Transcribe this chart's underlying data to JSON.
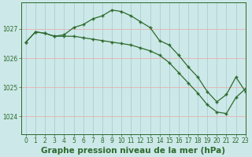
{
  "title": "Graphe pression niveau de la mer (hPa)",
  "background_color": "#cce8e8",
  "grid_color": "#aacfcf",
  "line_color": "#2d6a2d",
  "xlim": [
    -0.5,
    23
  ],
  "ylim": [
    1023.4,
    1027.9
  ],
  "yticks": [
    1024,
    1025,
    1026,
    1027
  ],
  "xticks": [
    0,
    1,
    2,
    3,
    4,
    5,
    6,
    7,
    8,
    9,
    10,
    11,
    12,
    13,
    14,
    15,
    16,
    17,
    18,
    19,
    20,
    21,
    22,
    23
  ],
  "series1_x": [
    0,
    1,
    2,
    3,
    4,
    5,
    6,
    7,
    8,
    9,
    10,
    11,
    12,
    13,
    14,
    15,
    16,
    17,
    18,
    19,
    20,
    21,
    22,
    23
  ],
  "series1_y": [
    1026.55,
    1026.9,
    1026.85,
    1026.75,
    1026.8,
    1027.05,
    1027.15,
    1027.35,
    1027.45,
    1027.65,
    1027.6,
    1027.45,
    1027.25,
    1027.05,
    1026.6,
    1026.45,
    1026.1,
    1025.7,
    1025.35,
    1024.85,
    1024.5,
    1024.75,
    1025.35,
    1024.85
  ],
  "series2_x": [
    0,
    1,
    2,
    3,
    4,
    5,
    6,
    7,
    8,
    9,
    10,
    11,
    12,
    13,
    14,
    15,
    16,
    17,
    18,
    19,
    20,
    21,
    22,
    23
  ],
  "series2_y": [
    1026.55,
    1026.9,
    1026.85,
    1026.75,
    1026.75,
    1026.75,
    1026.7,
    1026.65,
    1026.6,
    1026.55,
    1026.5,
    1026.45,
    1026.35,
    1026.25,
    1026.1,
    1025.85,
    1025.5,
    1025.15,
    1024.8,
    1024.4,
    1024.15,
    1024.1,
    1024.65,
    1024.95
  ],
  "title_color": "#2d6a2d",
  "title_fontsize": 7.5,
  "tick_fontsize": 5.5,
  "tick_color": "#2d6a2d"
}
